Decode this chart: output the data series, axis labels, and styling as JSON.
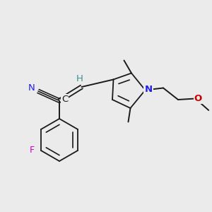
{
  "bg_color": "#ebebeb",
  "bond_color": "#1a1a1a",
  "N_color": "#2020ee",
  "O_color": "#cc0000",
  "F_color": "#cc00cc",
  "C_label_color": "#1a1a1a",
  "H_color": "#3a9090",
  "figsize": [
    3.0,
    3.0
  ],
  "dpi": 100,
  "xlim": [
    0,
    10
  ],
  "ylim": [
    0,
    10
  ]
}
